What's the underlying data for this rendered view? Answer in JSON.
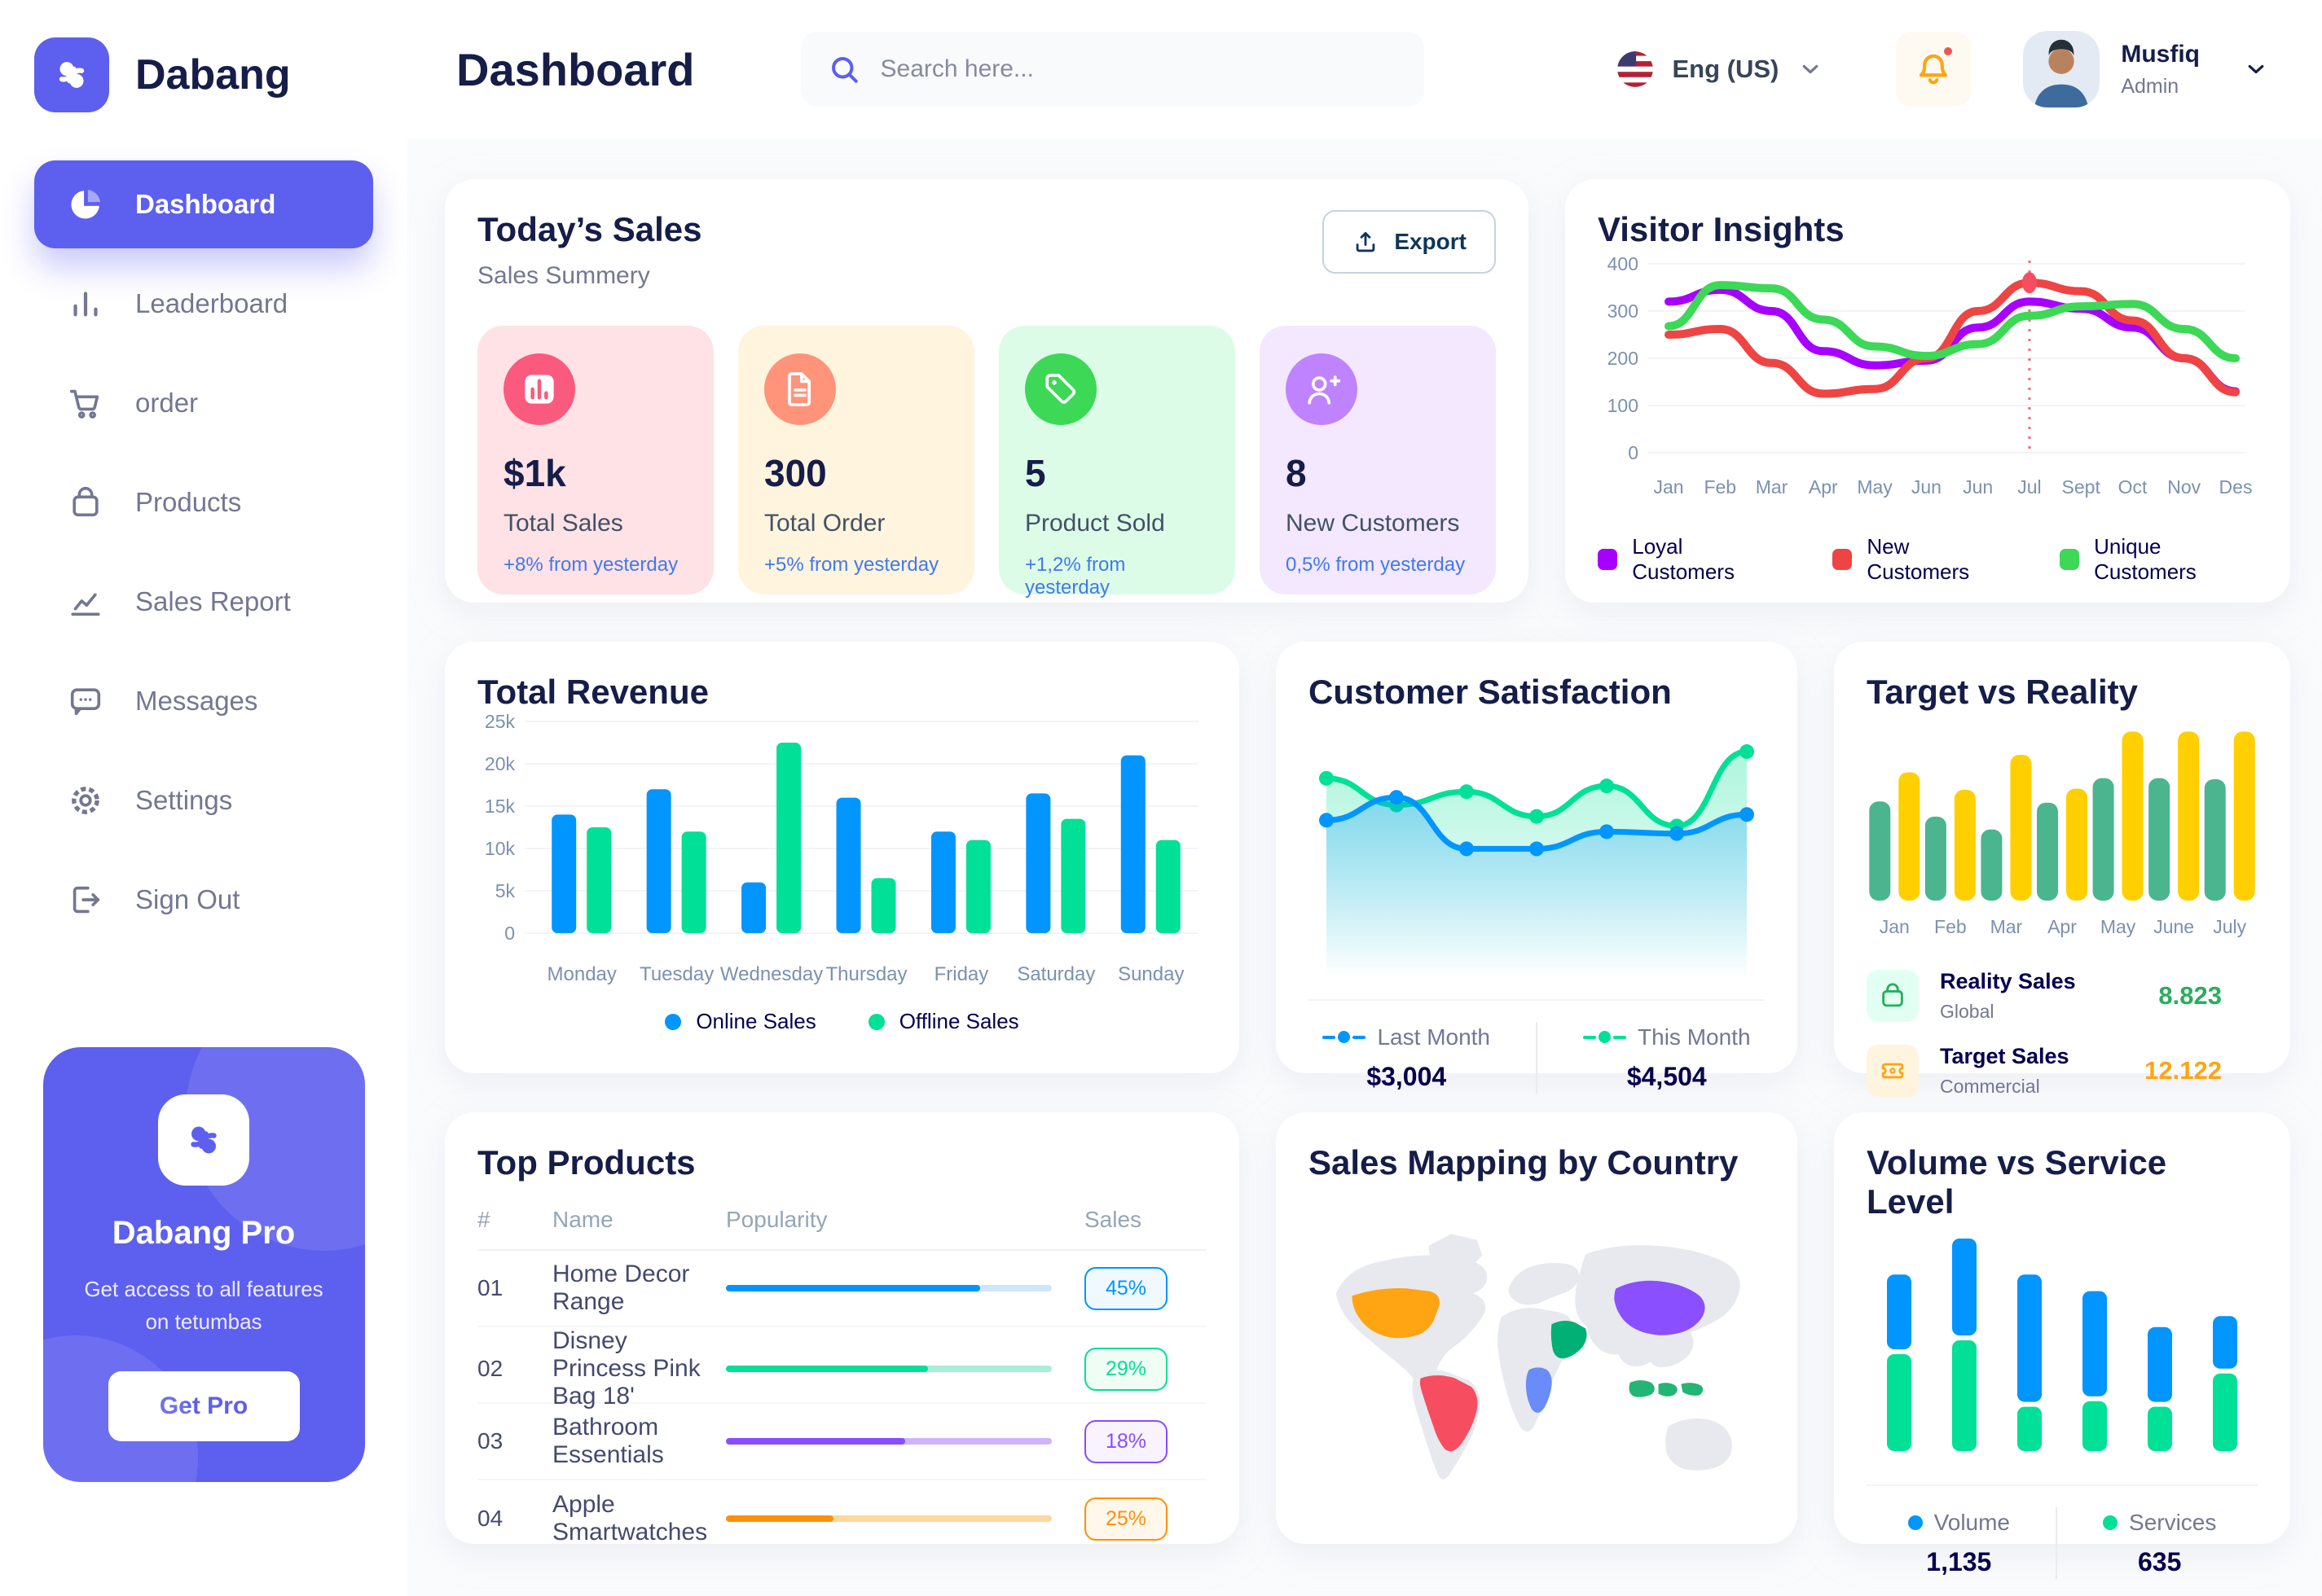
{
  "app": {
    "name": "Dabang"
  },
  "header": {
    "title": "Dashboard",
    "search_placeholder": "Search here...",
    "language": "Eng (US)",
    "user": {
      "name": "Musfiq",
      "role": "Admin"
    }
  },
  "sidebar": {
    "items": [
      {
        "label": "Dashboard",
        "icon": "pie-chart",
        "active": true
      },
      {
        "label": "Leaderboard",
        "icon": "bar-columns",
        "active": false
      },
      {
        "label": "order",
        "icon": "cart",
        "active": false
      },
      {
        "label": "Products",
        "icon": "bag",
        "active": false
      },
      {
        "label": "Sales Report",
        "icon": "line-chart",
        "active": false
      },
      {
        "label": "Messages",
        "icon": "chat",
        "active": false
      },
      {
        "label": "Settings",
        "icon": "gear",
        "active": false
      },
      {
        "label": "Sign Out",
        "icon": "sign-out",
        "active": false
      }
    ],
    "pro": {
      "title": "Dabang Pro",
      "subtitle": "Get access to all features on tetumbas",
      "button": "Get Pro"
    }
  },
  "today_sales": {
    "title": "Today’s Sales",
    "subtitle": "Sales Summery",
    "export_label": "Export",
    "stats": [
      {
        "value": "$1k",
        "label": "Total Sales",
        "delta": "+8% from yesterday",
        "bg": "#FFE2E5",
        "icon_bg": "#FA5A7D",
        "icon": "bar-stat"
      },
      {
        "value": "300",
        "label": "Total Order",
        "delta": "+5% from yesterday",
        "bg": "#FFF4DE",
        "icon_bg": "#FF947A",
        "icon": "file-lines"
      },
      {
        "value": "5",
        "label": "Product Sold",
        "delta": "+1,2% from yesterday",
        "bg": "#DCFCE7",
        "icon_bg": "#3CD856",
        "icon": "tag"
      },
      {
        "value": "8",
        "label": "New Customers",
        "delta": "0,5% from yesterday",
        "bg": "#F3E8FF",
        "icon_bg": "#BF83FF",
        "icon": "user-plus"
      }
    ]
  },
  "top_products": {
    "title": "Top Products",
    "headers": {
      "num": "#",
      "name": "Name",
      "popularity": "Popularity",
      "sales": "Sales"
    },
    "rows": [
      {
        "num": "01",
        "name": "Home Decor Range",
        "popularity": 78,
        "sales": "45%",
        "color": "#0095FF",
        "track": "#CDE7FF",
        "badge_bg": "#F0F9FF"
      },
      {
        "num": "02",
        "name": "Disney Princess Pink Bag 18'",
        "popularity": 62,
        "sales": "29%",
        "color": "#00E096",
        "track": "#A9EFD8",
        "badge_bg": "#F0FDF4"
      },
      {
        "num": "03",
        "name": "Bathroom Essentials",
        "popularity": 55,
        "sales": "18%",
        "color": "#884DFF",
        "track": "#CDB4FA",
        "badge_bg": "#F8F3FF"
      },
      {
        "num": "04",
        "name": "Apple Smartwatches",
        "popularity": 33,
        "sales": "25%",
        "color": "#FF8F0D",
        "track": "#FFD89E",
        "badge_bg": "#FFF7EA"
      }
    ]
  },
  "sales_map": {
    "title": "Sales Mapping by Country",
    "countries": [
      {
        "id": "usa",
        "name": "United States",
        "color": "#FFA412"
      },
      {
        "id": "brazil",
        "name": "Brazil",
        "color": "#F64E60"
      },
      {
        "id": "saudi",
        "name": "Saudi Arabia",
        "color": "#00B074"
      },
      {
        "id": "congo",
        "name": "DR Congo",
        "color": "#6A8CF8"
      },
      {
        "id": "china",
        "name": "China",
        "color": "#8A4FFF"
      },
      {
        "id": "indonesia",
        "name": "Indonesia",
        "color": "#22B573"
      }
    ]
  },
  "chart_data": [
    {
      "id": "visitor_insights",
      "type": "line",
      "title": "Visitor Insights",
      "categories": [
        "Jan",
        "Feb",
        "Mar",
        "Apr",
        "May",
        "Jun",
        "Jun",
        "Jul",
        "Sept",
        "Oct",
        "Nov",
        "Des"
      ],
      "ylim": [
        0,
        400
      ],
      "yticks": [
        0,
        100,
        200,
        300,
        400
      ],
      "grid": true,
      "legend_position": "bottom",
      "series": [
        {
          "name": "Loyal Customers",
          "color": "#A700FF",
          "values": [
            320,
            345,
            300,
            215,
            185,
            195,
            265,
            320,
            305,
            265,
            200,
            130
          ]
        },
        {
          "name": "New Customers",
          "color": "#EF4444",
          "values": [
            250,
            262,
            190,
            125,
            135,
            200,
            300,
            360,
            342,
            280,
            200,
            128
          ]
        },
        {
          "name": "Unique Customers",
          "color": "#3CD856",
          "values": [
            268,
            355,
            348,
            282,
            225,
            205,
            230,
            290,
            310,
            315,
            262,
            200
          ]
        }
      ],
      "highlight": {
        "category_index": 7,
        "series": "New Customers",
        "value": 360,
        "color": "#F64E60"
      }
    },
    {
      "id": "total_revenue",
      "type": "bar",
      "title": "Total Revenue",
      "categories": [
        "Monday",
        "Tuesday",
        "Wednesday",
        "Thursday",
        "Friday",
        "Saturday",
        "Sunday"
      ],
      "ylim": [
        0,
        25000
      ],
      "yticks": [
        0,
        5000,
        10000,
        15000,
        20000,
        25000
      ],
      "ytick_labels": [
        "0",
        "5k",
        "10k",
        "15k",
        "20k",
        "25k"
      ],
      "grid": true,
      "legend_position": "bottom",
      "series": [
        {
          "name": "Online Sales",
          "color": "#0095FF",
          "values": [
            14000,
            17000,
            6000,
            16000,
            12000,
            16500,
            21000
          ]
        },
        {
          "name": "Offline Sales",
          "color": "#00E096",
          "values": [
            12500,
            12000,
            22500,
            6500,
            11000,
            13500,
            11000
          ]
        }
      ]
    },
    {
      "id": "customer_satisfaction",
      "type": "area",
      "title": "Customer Satisfaction",
      "ylim": [
        0,
        100
      ],
      "grid": false,
      "legend_position": "bottom",
      "series": [
        {
          "name": "Last Month",
          "color": "#0095FF",
          "total": "$3,004",
          "values": [
            55,
            67,
            40,
            40,
            49,
            48,
            58
          ]
        },
        {
          "name": "This Month",
          "color": "#00E096",
          "total": "$4,504",
          "values": [
            77,
            63,
            70,
            57,
            73,
            52,
            91
          ]
        }
      ]
    },
    {
      "id": "target_reality",
      "type": "bar",
      "title": "Target vs Reality",
      "categories": [
        "Jan",
        "Feb",
        "Mar",
        "Apr",
        "May",
        "June",
        "July"
      ],
      "ylim": [
        0,
        15.5
      ],
      "grid": false,
      "legend_position": "none",
      "series": [
        {
          "name": "Reality Sales",
          "color": "#4AB58E",
          "values": [
            8.5,
            7.2,
            6.1,
            8.4,
            10.5,
            10.5,
            10.4
          ]
        },
        {
          "name": "Target Sales",
          "color": "#FFCF00",
          "values": [
            11,
            9.5,
            12.5,
            9.6,
            14.5,
            14.5,
            14.5
          ]
        }
      ],
      "summary": [
        {
          "label": "Reality Sales",
          "sub": "Global",
          "value": "8.823",
          "value_color": "#27AE60",
          "tile_bg": "#E2FFF3",
          "icon": "bag"
        },
        {
          "label": "Target Sales",
          "sub": "Commercial",
          "value": "12.122",
          "value_color": "#FFA412",
          "tile_bg": "#FFF4DE",
          "icon": "ticket"
        }
      ]
    },
    {
      "id": "volume_service",
      "type": "stacked-bar",
      "title": "Volume vs Service Level",
      "categories": [
        "",
        "",
        "",
        "",
        "",
        ""
      ],
      "ylim": [
        0,
        80
      ],
      "grid": false,
      "legend_position": "bottom",
      "series": [
        {
          "name": "Volume",
          "color": "#0095FF",
          "total": "1,135",
          "values": [
            27,
            35,
            46,
            38,
            27,
            19
          ]
        },
        {
          "name": "Services",
          "color": "#00E096",
          "total": "635",
          "values": [
            35,
            40,
            16,
            18,
            16,
            28
          ]
        }
      ]
    }
  ]
}
